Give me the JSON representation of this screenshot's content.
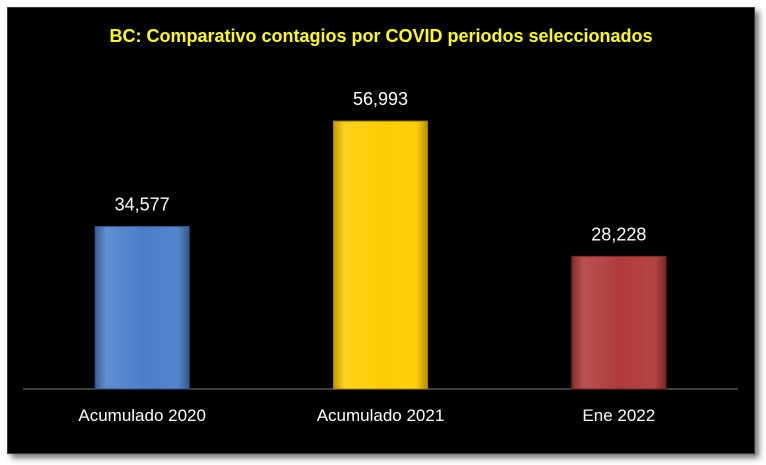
{
  "chart_data": {
    "type": "bar",
    "title": "BC: Comparativo contagios por COVID periodos seleccionados",
    "categories": [
      "Acumulado 2020",
      "Acumulado 2021",
      "Ene 2022"
    ],
    "values": [
      34577,
      56993,
      28228
    ],
    "value_labels": [
      "34,577",
      "56,993",
      "28,228"
    ],
    "bar_colors": [
      "#4a7fc8",
      "#ffcc00",
      "#b03a3a"
    ],
    "ylim": [
      0,
      70000
    ],
    "grid": false,
    "legend": "none",
    "xlabel": "",
    "ylabel": ""
  },
  "colors": {
    "background": "#000000",
    "title": "#ffff1a",
    "text": "#ffffff",
    "axis": "#808080"
  }
}
